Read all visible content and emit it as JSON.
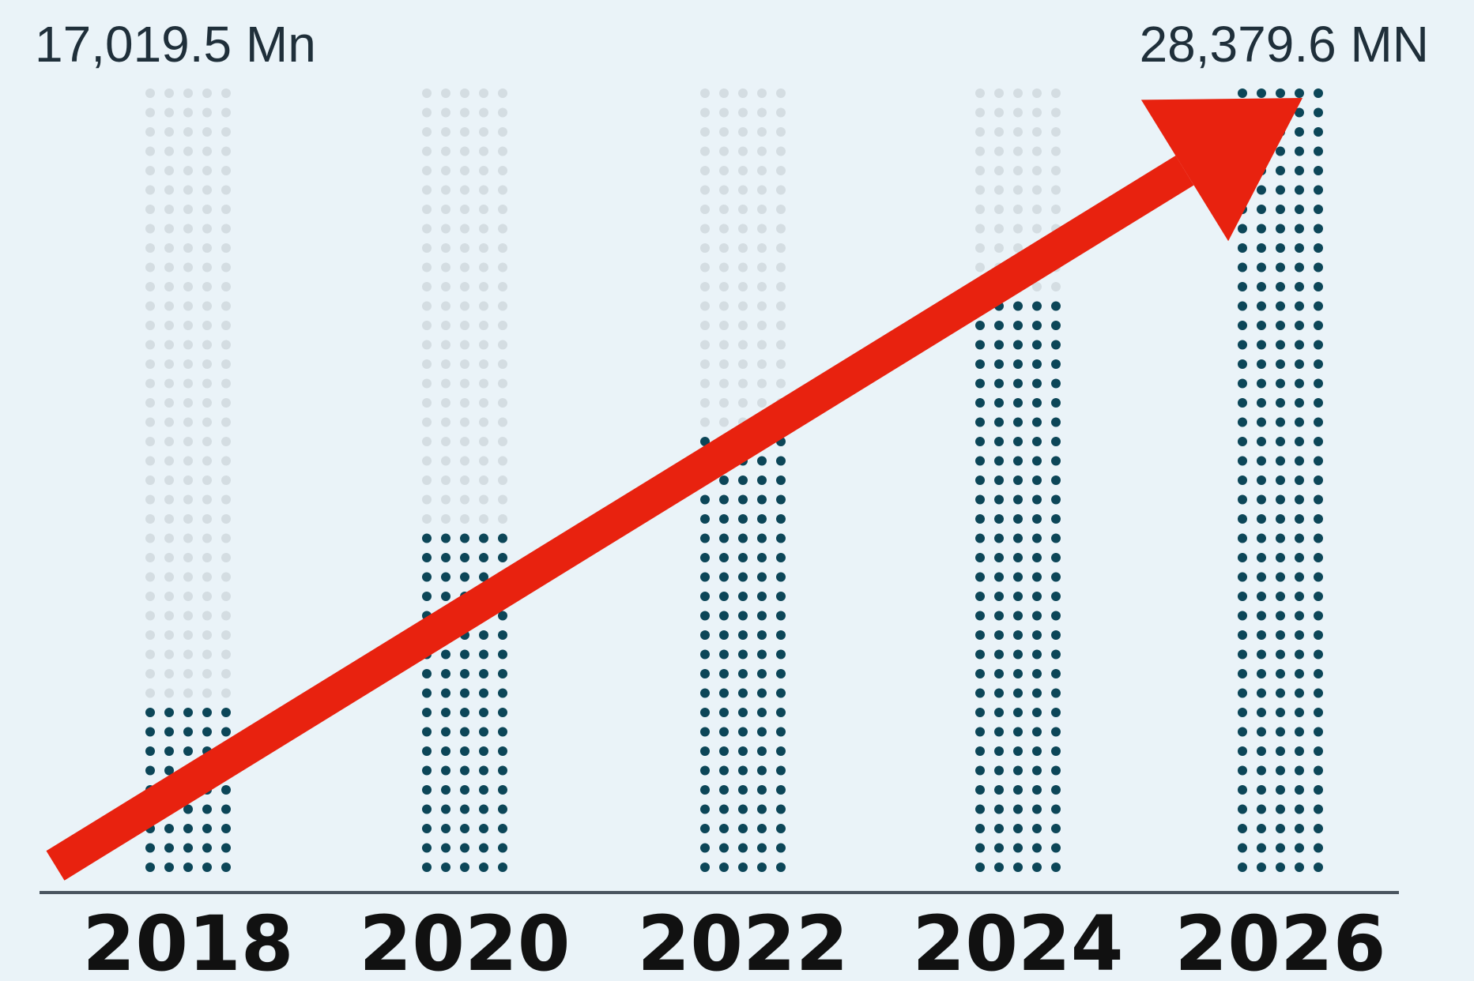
{
  "chart_data": {
    "type": "bar",
    "categories": [
      "2018",
      "2020",
      "2022",
      "2024",
      "2026"
    ],
    "fill_fraction": [
      0.21,
      0.44,
      0.57,
      0.74,
      1.0
    ],
    "annotations": {
      "start_value": "17,019.5 Mn",
      "end_value": "28,379.6 MN"
    },
    "trend_arrow": true,
    "colors": {
      "background": "#eaf3f8",
      "filled_dot": "#0c4658",
      "empty_dot": "#d4dde2",
      "arrow": "#e8220f",
      "baseline": "#4a5560"
    }
  }
}
